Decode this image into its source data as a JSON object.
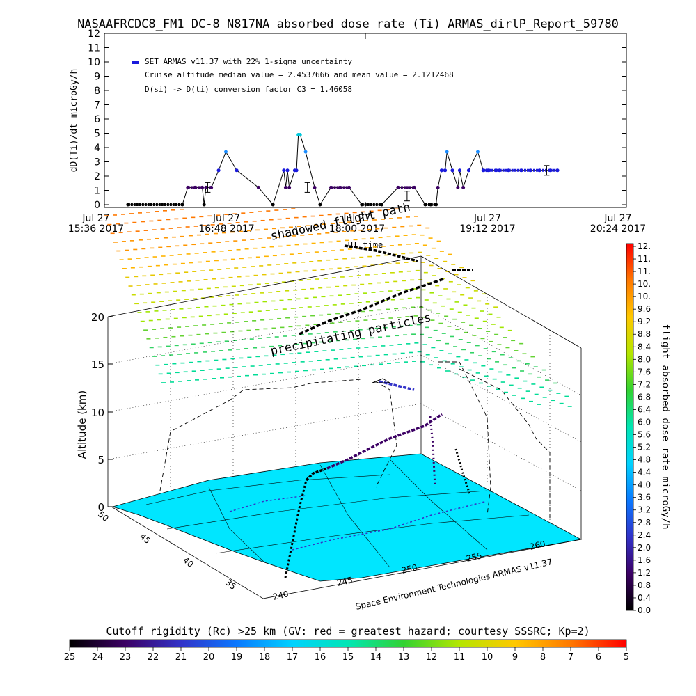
{
  "header": {
    "title": "NASAAFRCDC8_FM1 DC-8   N817NA absorbed dose rate (Ti) ARMAS_dirlP_Report_59780"
  },
  "chart_data": [
    {
      "type": "scatter",
      "ylabel": "dD(Ti)/dt microGy/h",
      "xlabel": "UT time",
      "ylim": [
        0,
        12
      ],
      "y_ticks": [
        "0",
        "1",
        "2",
        "3",
        "4",
        "5",
        "6",
        "7",
        "8",
        "9",
        "10",
        "11",
        "12"
      ],
      "x_ticks": [
        {
          "line1": "Jul 27",
          "line2": "15:36 2017"
        },
        {
          "line1": "Jul 27",
          "line2": "16:48 2017"
        },
        {
          "line1": "Jul 27",
          "line2": "18:00 2017"
        },
        {
          "line1": "Jul 27",
          "line2": "19:12 2017"
        },
        {
          "line1": "Jul 27",
          "line2": "20:24 2017"
        }
      ],
      "legend": [
        "SET ARMAS v11.37 with 22% 1-sigma uncertainty",
        "Cruise altitude median value = 2.4537666 and mean value = 2.1212468",
        "D(si) -> D(ti) conversion factor C3 = 1.46058"
      ],
      "legend_color": "#1a1adc",
      "x_range_minutes": [
        0,
        288
      ],
      "series": [
        {
          "x": [
            13,
            43,
            46,
            50,
            54,
            55,
            56,
            59,
            63,
            67,
            73,
            85,
            93,
            99,
            100,
            101,
            102,
            105,
            106,
            107,
            108,
            111,
            116,
            119,
            125,
            130,
            135,
            142,
            153,
            162,
            171,
            177,
            180,
            183,
            184,
            186,
            188,
            189,
            192,
            195,
            196,
            198,
            201,
            206,
            209,
            211,
            212,
            216,
            218,
            223,
            230,
            235,
            240,
            246,
            250
          ],
          "y": [
            0,
            0,
            1.2,
            1.2,
            1.2,
            0,
            1.2,
            1.2,
            2.4,
            3.7,
            2.4,
            1.2,
            0,
            2.4,
            1.2,
            2.4,
            1.2,
            2.4,
            2.4,
            4.9,
            4.9,
            3.7,
            1.2,
            0,
            1.2,
            1.2,
            1.2,
            0,
            0,
            1.2,
            1.2,
            0,
            0,
            0,
            1.2,
            2.4,
            2.4,
            3.7,
            2.4,
            1.2,
            2.4,
            1.2,
            2.4,
            3.7,
            2.4,
            2.4,
            2.4,
            2.4,
            2.4,
            2.4,
            2.4,
            2.4,
            2.4,
            2.4,
            2.4
          ],
          "error_bars": [
            {
              "x": 57,
              "y": 1.2
            },
            {
              "x": 112,
              "y": 1.2
            },
            {
              "x": 167,
              "y": 0.6
            },
            {
              "x": 244,
              "y": 2.4
            }
          ]
        }
      ]
    },
    {
      "type": "3d-map",
      "title_lines": [
        "shadowed flight path",
        "precipitating particles"
      ],
      "zlabel": "Altitude (km)",
      "z_ticks": [
        "0",
        "5",
        "10",
        "15",
        "20"
      ],
      "lat_ticks": [
        "50",
        "45",
        "40",
        "35"
      ],
      "lon_ticks": [
        "240",
        "245",
        "250",
        "255",
        "260"
      ],
      "credit": "Space Environment Technologies ARMAS v11.37",
      "colorbar_label": "flight absorbed dose rate microGy/h",
      "colorbar_ticks": [
        "12.",
        "11.",
        "11.",
        "10.",
        "10.",
        "9.6",
        "9.2",
        "8.8",
        "8.4",
        "8.0",
        "7.6",
        "7.2",
        "6.8",
        "6.4",
        "6.0",
        "5.6",
        "5.2",
        "4.8",
        "4.4",
        "4.0",
        "3.6",
        "3.2",
        "2.8",
        "2.4",
        "2.0",
        "1.6",
        "1.2",
        "0.8",
        "0.4",
        "0.0"
      ]
    }
  ],
  "bottom_colorbar": {
    "label": "Cutoff rigidity (Rc) >25 km (GV: red = greatest hazard; courtesy SSSRC; Kp=2)",
    "ticks": [
      "25",
      "24",
      "23",
      "22",
      "21",
      "20",
      "19",
      "18",
      "17",
      "16",
      "15",
      "14",
      "13",
      "12",
      "11",
      "10",
      "9",
      "8",
      "7",
      "6",
      "5"
    ]
  }
}
